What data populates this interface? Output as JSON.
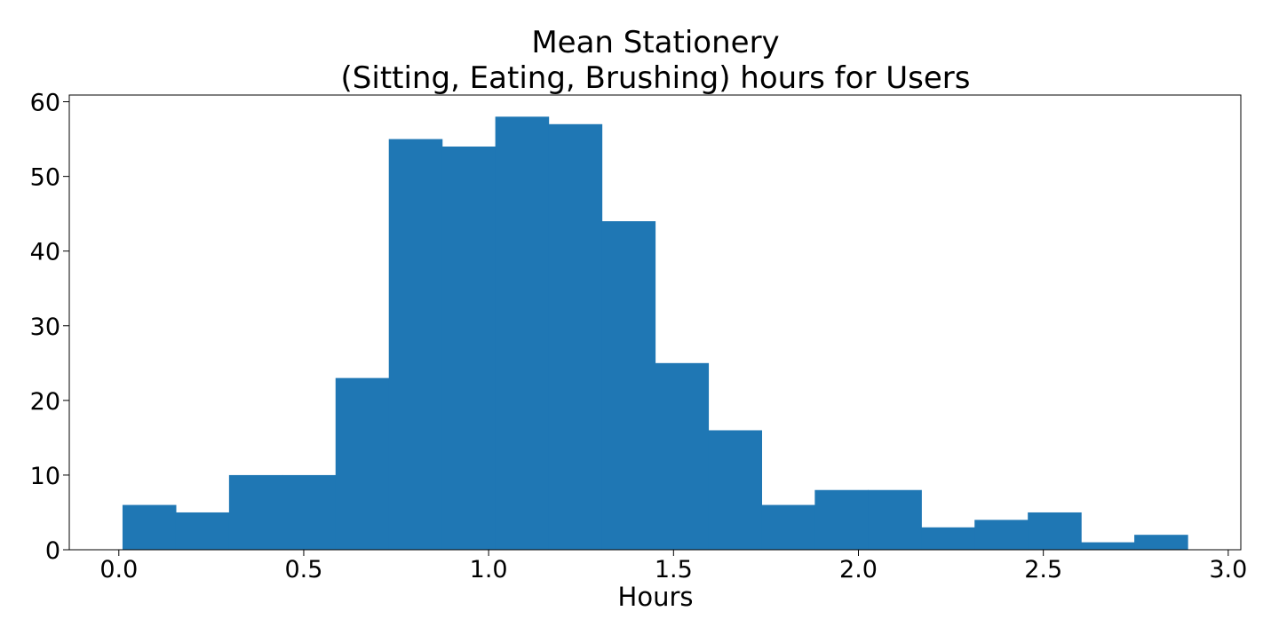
{
  "chart_data": {
    "type": "bar",
    "title_lines": [
      "Mean Stationery",
      "(Sitting, Eating, Brushing) hours for Users"
    ],
    "xlabel": "Hours",
    "ylabel": "",
    "bin_edges": [
      0.01,
      0.154,
      0.298,
      0.442,
      0.586,
      0.73,
      0.874,
      1.018,
      1.162,
      1.306,
      1.45,
      1.594,
      1.738,
      1.882,
      2.026,
      2.17,
      2.314,
      2.458,
      2.602,
      2.746,
      2.89
    ],
    "values": [
      6,
      5,
      10,
      10,
      23,
      55,
      54,
      58,
      57,
      44,
      25,
      16,
      6,
      8,
      8,
      3,
      4,
      5,
      1,
      2
    ],
    "xlim": [
      -0.134,
      3.034
    ],
    "ylim": [
      0,
      60.9
    ],
    "xticks": [
      0.0,
      0.5,
      1.0,
      1.5,
      2.0,
      2.5,
      3.0
    ],
    "xtick_labels": [
      "0.0",
      "0.5",
      "1.0",
      "1.5",
      "2.0",
      "2.5",
      "3.0"
    ],
    "yticks": [
      0,
      10,
      20,
      30,
      40,
      50,
      60
    ],
    "ytick_labels": [
      "0",
      "10",
      "20",
      "30",
      "40",
      "50",
      "60"
    ],
    "bar_color": "#1f77b4",
    "grid": false,
    "legend": "none"
  }
}
